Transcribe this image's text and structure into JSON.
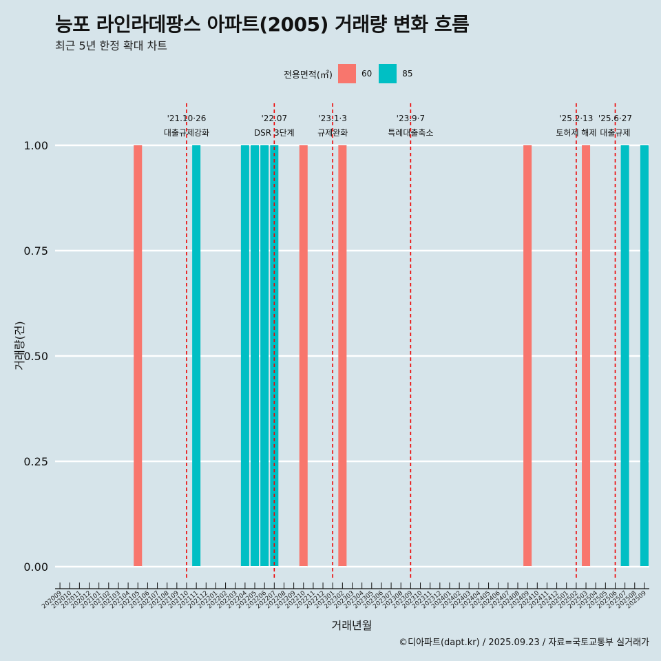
{
  "title": "능포 라인라데팡스 아파트(2005) 거래량 변화 흐름",
  "subtitle": "최근 5년 한정 확대 차트",
  "caption": "©디아파트(dapt.kr) / 2025.09.23 / 자료=국토교통부 실거래가",
  "legend": {
    "title": "전용면적(㎡)",
    "items": [
      {
        "label": "60",
        "color": "#f8766d"
      },
      {
        "label": "85",
        "color": "#00bfc4"
      }
    ]
  },
  "chart_data": {
    "type": "bar",
    "xlabel": "거래년월",
    "ylabel": "거래량(건)",
    "ylim": [
      0,
      1
    ],
    "yticks": [
      "0.00",
      "0.25",
      "0.50",
      "0.75",
      "1.00"
    ],
    "grid": true,
    "legend_position": "top",
    "categories": [
      "202009",
      "202010",
      "202011",
      "202012",
      "202101",
      "202102",
      "202103",
      "202104",
      "202105",
      "202106",
      "202107",
      "202108",
      "202109",
      "202110",
      "202111",
      "202112",
      "202201",
      "202202",
      "202203",
      "202204",
      "202205",
      "202206",
      "202207",
      "202208",
      "202209",
      "202210",
      "202211",
      "202212",
      "202301",
      "202302",
      "202303",
      "202304",
      "202305",
      "202306",
      "202307",
      "202308",
      "202309",
      "202310",
      "202311",
      "202312",
      "202401",
      "202402",
      "202403",
      "202404",
      "202405",
      "202406",
      "202407",
      "202408",
      "202409",
      "202410",
      "202411",
      "202412",
      "202501",
      "202502",
      "202503",
      "202504",
      "202505",
      "202506",
      "202507",
      "202508",
      "202509"
    ],
    "series": [
      {
        "name": "60",
        "color": "#f8766d",
        "points": [
          {
            "x": "202105",
            "y": 1
          },
          {
            "x": "202210",
            "y": 1
          },
          {
            "x": "202302",
            "y": 1
          },
          {
            "x": "202409",
            "y": 1
          },
          {
            "x": "202503",
            "y": 1
          }
        ]
      },
      {
        "name": "85",
        "color": "#00bfc4",
        "points": [
          {
            "x": "202111",
            "y": 1
          },
          {
            "x": "202204",
            "y": 1
          },
          {
            "x": "202205",
            "y": 1
          },
          {
            "x": "202206",
            "y": 1
          },
          {
            "x": "202207",
            "y": 1
          },
          {
            "x": "202507",
            "y": 1
          },
          {
            "x": "202509",
            "y": 1
          }
        ]
      }
    ],
    "zero_markers": [
      "202105",
      "202111",
      "202204",
      "202205",
      "202206",
      "202207",
      "202210",
      "202302",
      "202409",
      "202503",
      "202507",
      "202509"
    ],
    "annotations": [
      {
        "x": "202110",
        "date": "'21.10·26",
        "label": "대출규제강화"
      },
      {
        "x": "202207",
        "date": "'22.07",
        "label": "DSR 3단계"
      },
      {
        "x": "202301",
        "date": "'23.1·3",
        "label": "규제완화"
      },
      {
        "x": "202309",
        "date": "'23.9·7",
        "label": "특례대출축소"
      },
      {
        "x": "202502",
        "date": "'25.2·13",
        "label": "토허제 해제"
      },
      {
        "x": "202506",
        "date": "'25.6·27",
        "label": "대출규제"
      }
    ]
  }
}
